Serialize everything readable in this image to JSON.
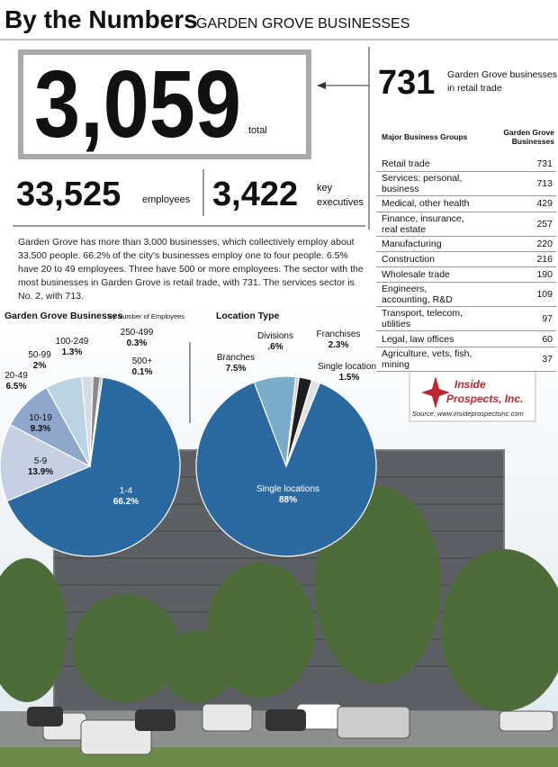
{
  "header": {
    "title": "By the Numbers",
    "subtitle": "GARDEN GROVE BUSINESSES"
  },
  "total": {
    "value": "3,059",
    "label": "total"
  },
  "retail": {
    "value": "731",
    "label": [
      "Garden Grove businesses",
      "in retail trade"
    ]
  },
  "employees": {
    "value": "33,525",
    "label": "employees"
  },
  "executives": {
    "value": "3,422",
    "label": [
      "key",
      "executives"
    ]
  },
  "paragraph": "Garden Grove has more than 3,000 businesses, which collectively employ about 33,500 people. 66.2% of the city's businesses employ one to four people. 6.5% have 20 to 49 employees. Three have 500 or more employees. The sector with the most businesses in Garden Grove is retail trade, with 731. The services sector is No. 2, with 713.",
  "table": {
    "columns": [
      "Major Business Groups",
      "Garden Grove Businesses"
    ],
    "rows": [
      [
        "Retail trade",
        "731"
      ],
      [
        "Services: personal, business",
        "713"
      ],
      [
        "Medical, other health",
        "429"
      ],
      [
        "Finance, insurance, real estate",
        "257"
      ],
      [
        "Manufacturing",
        "220"
      ],
      [
        "Construction",
        "216"
      ],
      [
        "Wholesale trade",
        "190"
      ],
      [
        "Engineers, accounting, R&D",
        "109"
      ],
      [
        "Transport, telecom, utilities",
        "97"
      ],
      [
        "Legal, law offices",
        "60"
      ],
      [
        "Agriculture, vets, fish, mining",
        "37"
      ]
    ]
  },
  "logo": {
    "name": [
      "Inside",
      "Prospects, Inc."
    ],
    "source": "Source: www.insideprospectsinc.com"
  },
  "chart_data": [
    {
      "type": "pie",
      "title": "Garden Grove Businesses",
      "subtitle": "By Number of Employees",
      "categories": [
        "1-4",
        "5-9",
        "10-19",
        "20-49",
        "50-99",
        "100-249",
        "250-499",
        "500+"
      ],
      "values": [
        66.2,
        13.9,
        9.3,
        6.5,
        2,
        1.3,
        0.3,
        0.1
      ],
      "value_labels": [
        "66.2%",
        "13.9%",
        "9.3%",
        "6.5%",
        "2%",
        "1.3%",
        "0.3%",
        "0.1%"
      ],
      "colors": [
        "#2a6aa1",
        "#c7cfe2",
        "#8fa7cb",
        "#bcd3e3",
        "#d4dbe3",
        "#8a8a8a",
        "#4a4a4a",
        "#2a6aa1"
      ]
    },
    {
      "type": "pie",
      "title": "Location Type",
      "categories": [
        "Single locations",
        "Branches",
        "Divisions",
        "Franchises",
        "Single locations"
      ],
      "values": [
        88,
        7.5,
        0.6,
        2.3,
        1.5
      ],
      "value_labels": [
        "88%",
        "7.5%",
        ".6%",
        "2.3%",
        "1.5%"
      ],
      "colors": [
        "#2a6aa1",
        "#7aabc9",
        "#cfcfcf",
        "#1e1e1e",
        "#e2e2e2"
      ]
    }
  ]
}
